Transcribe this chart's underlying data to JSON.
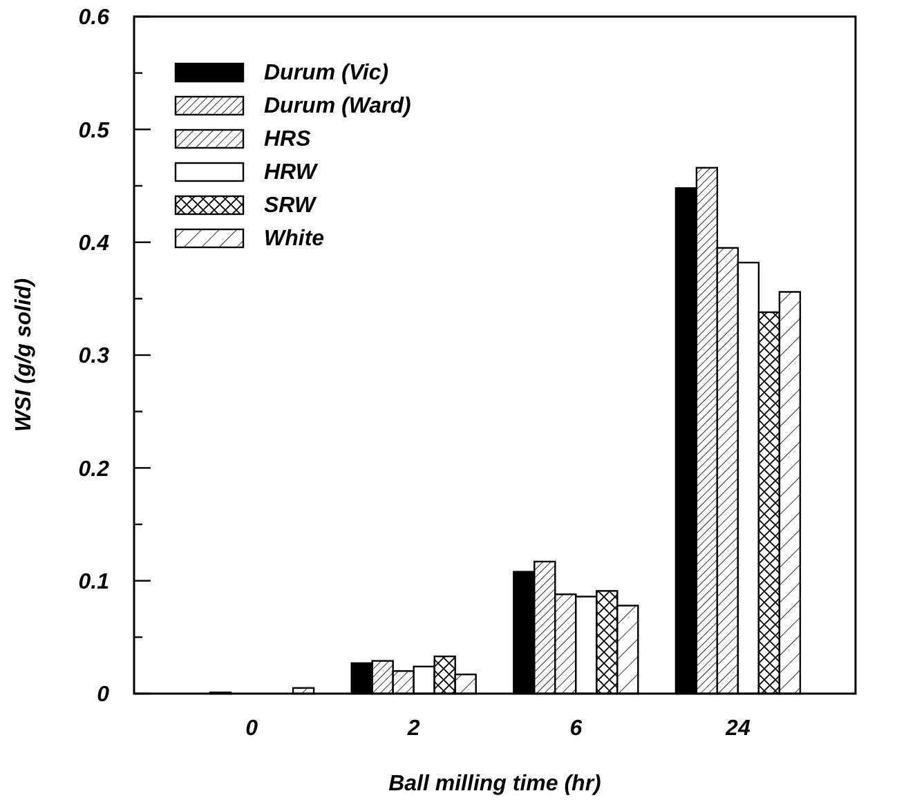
{
  "chart_data": {
    "type": "bar",
    "xlabel": "Ball milling time (hr)",
    "ylabel": "WSI (g/g solid)",
    "categories": [
      "0",
      "2",
      "6",
      "24"
    ],
    "ylim": [
      0,
      0.6
    ],
    "yticks": [
      0,
      {
        "value": 0.05,
        "label": null
      },
      0.1,
      {
        "value": 0.15,
        "label": null
      },
      0.2,
      {
        "value": 0.25,
        "label": null
      },
      0.3,
      {
        "value": 0.35,
        "label": null
      },
      0.4,
      {
        "value": 0.45,
        "label": null
      },
      0.5,
      {
        "value": 0.55,
        "label": null
      },
      0.6
    ],
    "legend": "top left",
    "grid": false,
    "series": [
      {
        "name": "Durum (Vic)",
        "color": "#000000",
        "values": [
          0,
          0.027,
          0.108,
          0.448
        ]
      },
      {
        "name": "Durum (Ward)",
        "color": "#000000",
        "values": [
          0.001,
          0.029,
          0.117,
          0.466
        ]
      },
      {
        "name": "HRS",
        "color": "#000000",
        "values": [
          0,
          0.02,
          0.088,
          0.395
        ]
      },
      {
        "name": "HRW",
        "color": "#ffffff",
        "values": [
          0,
          0.024,
          0.086,
          0.382
        ]
      },
      {
        "name": "SRW",
        "color": "#000000",
        "values": [
          0,
          0.033,
          0.091,
          0.338
        ]
      },
      {
        "name": "White",
        "color": "#000000",
        "values": [
          0.005,
          0.017,
          0.078,
          0.356
        ]
      }
    ]
  }
}
